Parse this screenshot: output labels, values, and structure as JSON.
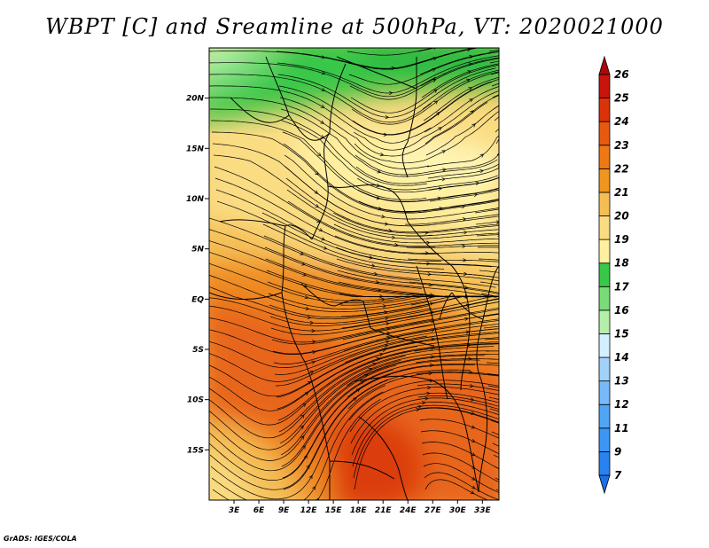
{
  "title": "WBPT [C] and Sreamline at 500hPa, VT: 2020021000",
  "credit": "GrADS: IGES/COLA",
  "map": {
    "lat_range": [
      -20,
      25
    ],
    "lon_range": [
      0,
      35
    ],
    "lat_ticks": [
      {
        "value": 20,
        "label": "20N"
      },
      {
        "value": 15,
        "label": "15N"
      },
      {
        "value": 10,
        "label": "10N"
      },
      {
        "value": 5,
        "label": "5N"
      },
      {
        "value": 0,
        "label": "EQ"
      },
      {
        "value": -5,
        "label": "5S"
      },
      {
        "value": -10,
        "label": "10S"
      },
      {
        "value": -15,
        "label": "15S"
      }
    ],
    "lon_ticks": [
      {
        "value": 3,
        "label": "3E"
      },
      {
        "value": 6,
        "label": "6E"
      },
      {
        "value": 9,
        "label": "9E"
      },
      {
        "value": 12,
        "label": "12E"
      },
      {
        "value": 15,
        "label": "15E"
      },
      {
        "value": 18,
        "label": "18E"
      },
      {
        "value": 21,
        "label": "21E"
      },
      {
        "value": 24,
        "label": "24E"
      },
      {
        "value": 27,
        "label": "27E"
      },
      {
        "value": 30,
        "label": "30E"
      },
      {
        "value": 33,
        "label": "33E"
      }
    ]
  },
  "colorbar": {
    "levels": [
      "7",
      "9",
      "11",
      "12",
      "13",
      "14",
      "15",
      "16",
      "17",
      "18",
      "19",
      "20",
      "21",
      "22",
      "23",
      "24",
      "25",
      "26"
    ],
    "colors": [
      "#1e6ee6",
      "#2882f0",
      "#3c96f5",
      "#50a5f5",
      "#78b9fa",
      "#a0d2fa",
      "#d2f0ff",
      "#b4f0aa",
      "#78dc78",
      "#37c84a",
      "#fff0a0",
      "#fadc82",
      "#f5be55",
      "#f0961e",
      "#ee7814",
      "#e65a0f",
      "#dc320a",
      "#c8140a",
      "#aa0a0a"
    ]
  }
}
